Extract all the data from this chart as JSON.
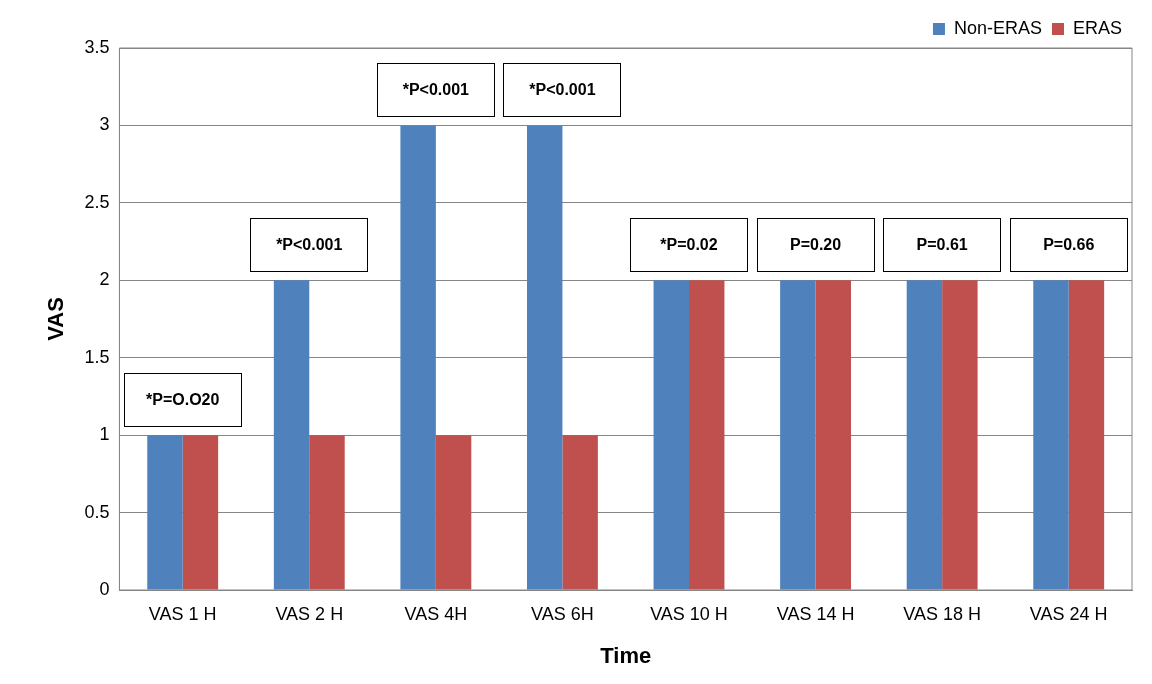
{
  "chart_data": {
    "type": "bar",
    "xlabel": "Time",
    "ylabel": "VAS",
    "categories": [
      "VAS 1 H",
      "VAS 2 H",
      "VAS 4H",
      "VAS 6H",
      "VAS 10 H",
      "VAS 14 H",
      "VAS 18 H",
      "VAS 24 H"
    ],
    "series": [
      {
        "name": "Non-ERAS",
        "color": "#4f81bd",
        "values": [
          1,
          2,
          3,
          3,
          2,
          2,
          2,
          2
        ]
      },
      {
        "name": "ERAS",
        "color": "#c0504d",
        "values": [
          1,
          1,
          1,
          1,
          2,
          2,
          2,
          2
        ]
      }
    ],
    "ylim": [
      0,
      3.5
    ],
    "yticks": [
      0,
      0.5,
      1,
      1.5,
      2,
      2.5,
      3,
      3.5
    ],
    "grid": "y",
    "legend": "top right",
    "annotations": [
      "*P=O.O20",
      "*P<0.001",
      "*P<0.001",
      "*P<0.001",
      "*P=0.02",
      "P=0.20",
      "P=0.61",
      "P=0.66"
    ]
  }
}
